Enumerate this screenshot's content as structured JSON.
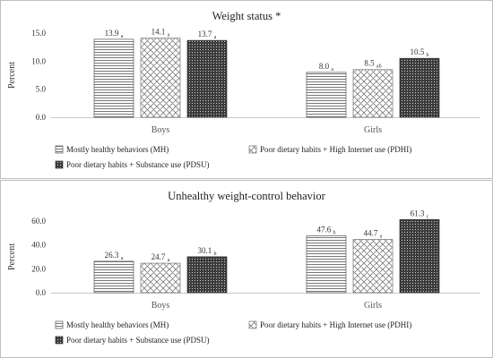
{
  "chart_data": [
    {
      "type": "bar",
      "title": "Weight status *",
      "xlabel": "",
      "ylabel": "Percent",
      "ylim": [
        0,
        15
      ],
      "yticks": [
        "0.0",
        "5.0",
        "10.0",
        "15.0"
      ],
      "categories": [
        "Boys",
        "Girls"
      ],
      "series": [
        {
          "name": "Mostly healthy behaviors (MH)",
          "values": [
            13.9,
            8.0
          ],
          "labels": [
            "13.9",
            "8.0"
          ],
          "sig": [
            "a",
            "a"
          ]
        },
        {
          "name": "Poor dietary habits + High Internet use (PDHI)",
          "values": [
            14.1,
            8.5
          ],
          "labels": [
            "14.1",
            "8.5"
          ],
          "sig": [
            "a",
            "ab"
          ]
        },
        {
          "name": "Poor dietary habits + Substance use (PDSU)",
          "values": [
            13.7,
            10.5
          ],
          "labels": [
            "13.7",
            "10.5"
          ],
          "sig": [
            "a",
            "b"
          ]
        }
      ],
      "grid": false,
      "legend": "bottom"
    },
    {
      "type": "bar",
      "title": "Unhealthy weight-control behavior",
      "xlabel": "",
      "ylabel": "Percent",
      "ylim": [
        0,
        60
      ],
      "yticks": [
        "0.0",
        "20.0",
        "40.0",
        "60.0"
      ],
      "categories": [
        "Boys",
        "Girls"
      ],
      "series": [
        {
          "name": "Mostly healthy behaviors (MH)",
          "values": [
            26.3,
            47.6
          ],
          "labels": [
            "26.3",
            "47.6"
          ],
          "sig": [
            "a",
            "b"
          ]
        },
        {
          "name": "Poor dietary habits + High Internet use (PDHI)",
          "values": [
            24.7,
            44.7
          ],
          "labels": [
            "24.7",
            "44.7"
          ],
          "sig": [
            "a",
            "a"
          ]
        },
        {
          "name": "Poor dietary habits + Substance use (PDSU)",
          "values": [
            30.1,
            61.3
          ],
          "labels": [
            "30.1",
            "61.3"
          ],
          "sig": [
            "b",
            "c"
          ]
        }
      ],
      "grid": false,
      "legend": "bottom"
    }
  ]
}
